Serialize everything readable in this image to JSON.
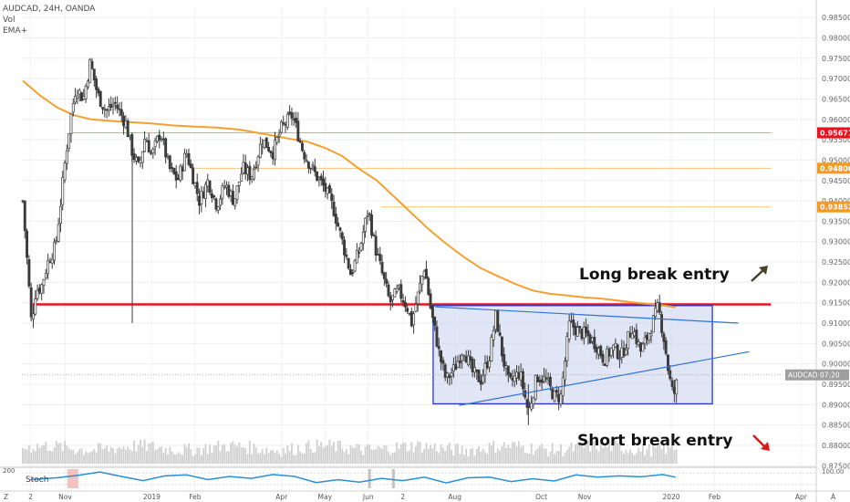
{
  "header": {
    "symbol_line": "AUDCAD, 24H, OANDA",
    "vol_label": "Vol",
    "ema_label": "EMA+"
  },
  "annotations": {
    "long_break": "Long break entry",
    "short_break": "Short break entry",
    "long_arrow_icon": "arrow-up-right-icon",
    "short_arrow_icon": "arrow-down-right-icon"
  },
  "price_labels": {
    "current_symbol": "AUDCAD",
    "current_time": "07:20",
    "level_red": "0.95671",
    "level_orange_1": "0.94800",
    "level_orange_2": "0.93852"
  },
  "stoch": {
    "label": "Stoch",
    "left_tick": "200",
    "right_tick": "100.00"
  },
  "corner_labels": {
    "bottom_left": "Z",
    "bottom_right": "A"
  },
  "colors": {
    "candle": "#3a3a3a",
    "ema": "#f5a030",
    "support": "#e8141b",
    "box": "#2338c8",
    "box_fill": "#c9d2ee",
    "trendline": "#2f73d6",
    "stoch": "#2a8fd6",
    "level_red": "#e8141b",
    "level_orange": "#f59a1c",
    "long_arrow": "#4a4030",
    "short_arrow": "#d81a1a"
  },
  "chart_data": {
    "type": "candlestick",
    "y_ticks": [
      "0.98500",
      "0.98000",
      "0.97500",
      "0.97000",
      "0.96500",
      "0.96000",
      "0.95500",
      "0.95000",
      "0.94500",
      "0.94000",
      "0.93500",
      "0.93000",
      "0.92500",
      "0.92000",
      "0.91500",
      "0.91000",
      "0.90500",
      "0.90000",
      "0.89500",
      "0.89000",
      "0.88500",
      "0.88000",
      "0.87500"
    ],
    "ylim": [
      0.8735,
      0.9875
    ],
    "x_ticks": [
      {
        "label": "2",
        "m": 0.2
      },
      {
        "label": "Nov",
        "m": 1
      },
      {
        "label": "2019",
        "m": 3
      },
      {
        "label": "Feb",
        "m": 4
      },
      {
        "label": "Apr",
        "m": 6
      },
      {
        "label": "May",
        "m": 7
      },
      {
        "label": "Jun",
        "m": 8
      },
      {
        "label": "2",
        "m": 8.8
      },
      {
        "label": "Aug",
        "m": 10
      },
      {
        "label": "Oct",
        "m": 12
      },
      {
        "label": "Nov",
        "m": 13
      },
      {
        "label": "2020",
        "m": 15
      },
      {
        "label": "Feb",
        "m": 16
      },
      {
        "label": "Apr",
        "m": 18
      }
    ],
    "xlim": [
      0,
      18.35
    ],
    "price_path": [
      [
        0.02,
        0.94
      ],
      [
        0.15,
        0.921
      ],
      [
        0.22,
        0.91
      ],
      [
        0.32,
        0.918
      ],
      [
        0.45,
        0.919
      ],
      [
        0.6,
        0.925
      ],
      [
        0.78,
        0.929
      ],
      [
        0.9,
        0.94
      ],
      [
        1.0,
        0.95
      ],
      [
        1.12,
        0.96
      ],
      [
        1.25,
        0.968
      ],
      [
        1.42,
        0.965
      ],
      [
        1.58,
        0.974
      ],
      [
        1.75,
        0.966
      ],
      [
        1.95,
        0.962
      ],
      [
        2.15,
        0.964
      ],
      [
        2.4,
        0.959
      ],
      [
        2.55,
        0.952
      ],
      [
        2.7,
        0.948
      ],
      [
        2.85,
        0.956
      ],
      [
        3.0,
        0.951
      ],
      [
        3.2,
        0.957
      ],
      [
        3.4,
        0.948
      ],
      [
        3.6,
        0.945
      ],
      [
        3.8,
        0.952
      ],
      [
        3.95,
        0.946
      ],
      [
        4.1,
        0.94
      ],
      [
        4.3,
        0.945
      ],
      [
        4.5,
        0.939
      ],
      [
        4.7,
        0.944
      ],
      [
        4.9,
        0.94
      ],
      [
        5.1,
        0.948
      ],
      [
        5.3,
        0.946
      ],
      [
        5.55,
        0.955
      ],
      [
        5.8,
        0.952
      ],
      [
        6.0,
        0.958
      ],
      [
        6.25,
        0.961
      ],
      [
        6.5,
        0.952
      ],
      [
        6.75,
        0.947
      ],
      [
        7.0,
        0.943
      ],
      [
        7.2,
        0.938
      ],
      [
        7.4,
        0.93
      ],
      [
        7.6,
        0.922
      ],
      [
        7.8,
        0.928
      ],
      [
        8.0,
        0.938
      ],
      [
        8.15,
        0.929
      ],
      [
        8.35,
        0.921
      ],
      [
        8.5,
        0.915
      ],
      [
        8.7,
        0.918
      ],
      [
        8.9,
        0.914
      ],
      [
        9.0,
        0.91
      ],
      [
        9.15,
        0.917
      ],
      [
        9.3,
        0.924
      ],
      [
        9.45,
        0.913
      ],
      [
        9.65,
        0.902
      ],
      [
        9.8,
        0.896
      ],
      [
        10.0,
        0.899
      ],
      [
        10.2,
        0.904
      ],
      [
        10.4,
        0.898
      ],
      [
        10.6,
        0.896
      ],
      [
        10.8,
        0.902
      ],
      [
        10.95,
        0.912
      ],
      [
        11.1,
        0.902
      ],
      [
        11.25,
        0.895
      ],
      [
        11.5,
        0.898
      ],
      [
        11.7,
        0.888
      ],
      [
        11.9,
        0.897
      ],
      [
        12.1,
        0.896
      ],
      [
        12.3,
        0.892
      ],
      [
        12.45,
        0.892
      ],
      [
        12.65,
        0.91
      ],
      [
        12.85,
        0.908
      ],
      [
        13.05,
        0.907
      ],
      [
        13.25,
        0.905
      ],
      [
        13.45,
        0.901
      ],
      [
        13.65,
        0.904
      ],
      [
        13.85,
        0.902
      ],
      [
        14.1,
        0.909
      ],
      [
        14.3,
        0.903
      ],
      [
        14.5,
        0.908
      ],
      [
        14.7,
        0.914
      ],
      [
        14.85,
        0.905
      ],
      [
        14.95,
        0.897
      ],
      [
        15.05,
        0.892
      ],
      [
        15.12,
        0.895
      ]
    ],
    "ema_path": [
      [
        0.02,
        0.9695
      ],
      [
        0.4,
        0.966
      ],
      [
        0.8,
        0.963
      ],
      [
        1.2,
        0.961
      ],
      [
        1.6,
        0.96
      ],
      [
        2.2,
        0.9595
      ],
      [
        3.0,
        0.959
      ],
      [
        3.5,
        0.9585
      ],
      [
        4.0,
        0.9582
      ],
      [
        4.5,
        0.958
      ],
      [
        5.0,
        0.9575
      ],
      [
        5.4,
        0.9568
      ],
      [
        5.8,
        0.956
      ],
      [
        6.2,
        0.9552
      ],
      [
        6.6,
        0.9545
      ],
      [
        7.0,
        0.953
      ],
      [
        7.4,
        0.951
      ],
      [
        7.8,
        0.9478
      ],
      [
        8.2,
        0.945
      ],
      [
        8.6,
        0.941
      ],
      [
        9.0,
        0.937
      ],
      [
        9.4,
        0.933
      ],
      [
        9.8,
        0.9295
      ],
      [
        10.2,
        0.9263
      ],
      [
        10.6,
        0.9235
      ],
      [
        11.0,
        0.9215
      ],
      [
        11.4,
        0.9196
      ],
      [
        11.8,
        0.918
      ],
      [
        12.2,
        0.9172
      ],
      [
        12.6,
        0.9168
      ],
      [
        13.0,
        0.9163
      ],
      [
        13.4,
        0.916
      ],
      [
        13.8,
        0.9155
      ],
      [
        14.2,
        0.915
      ],
      [
        14.6,
        0.9146
      ],
      [
        14.9,
        0.9142
      ],
      [
        15.1,
        0.9139
      ]
    ],
    "levels": [
      {
        "name": "support",
        "y": 0.9146,
        "x0": 0.25,
        "x1": 17.3,
        "color": "#e8141b",
        "width": 2.5
      },
      {
        "name": "level_red",
        "y": 0.9567,
        "x0": 1.15,
        "x1": 17.3,
        "color": "#f19a9a",
        "width": 1
      },
      {
        "name": "level_orange_1",
        "y": 0.948,
        "x0": 4.0,
        "x1": 17.3,
        "color": "#f5c27a",
        "width": 1
      },
      {
        "name": "level_orange_2",
        "y": 0.93852,
        "x0": 8.3,
        "x1": 17.3,
        "color": "#f5c27a",
        "width": 1
      }
    ],
    "box": {
      "x0": 9.5,
      "x1": 15.95,
      "y0": 0.8902,
      "y1": 0.9143
    },
    "trendlines": [
      {
        "name": "upper-trendline",
        "p1": [
          9.55,
          0.914
        ],
        "p2": [
          16.55,
          0.91
        ]
      },
      {
        "name": "lower-trendline",
        "p1": [
          10.1,
          0.8898
        ],
        "p2": [
          16.8,
          0.903
        ]
      }
    ],
    "current_price": 0.8973,
    "volume_baseline_price": 0.8755,
    "volume_span_price": 0.0062,
    "stoch_path": [
      [
        0.2,
        45
      ],
      [
        0.8,
        55
      ],
      [
        1.3,
        68
      ],
      [
        1.8,
        85
      ],
      [
        2.3,
        62
      ],
      [
        2.8,
        40
      ],
      [
        3.3,
        65
      ],
      [
        3.8,
        70
      ],
      [
        4.3,
        45
      ],
      [
        4.8,
        62
      ],
      [
        5.3,
        52
      ],
      [
        5.8,
        72
      ],
      [
        6.3,
        62
      ],
      [
        6.8,
        30
      ],
      [
        7.3,
        45
      ],
      [
        7.8,
        32
      ],
      [
        8.3,
        52
      ],
      [
        8.8,
        40
      ],
      [
        9.3,
        58
      ],
      [
        9.8,
        28
      ],
      [
        10.3,
        55
      ],
      [
        10.8,
        58
      ],
      [
        11.3,
        35
      ],
      [
        11.8,
        50
      ],
      [
        12.3,
        38
      ],
      [
        12.8,
        70
      ],
      [
        13.3,
        58
      ],
      [
        13.8,
        65
      ],
      [
        14.3,
        60
      ],
      [
        14.8,
        72
      ],
      [
        15.1,
        58
      ]
    ]
  }
}
